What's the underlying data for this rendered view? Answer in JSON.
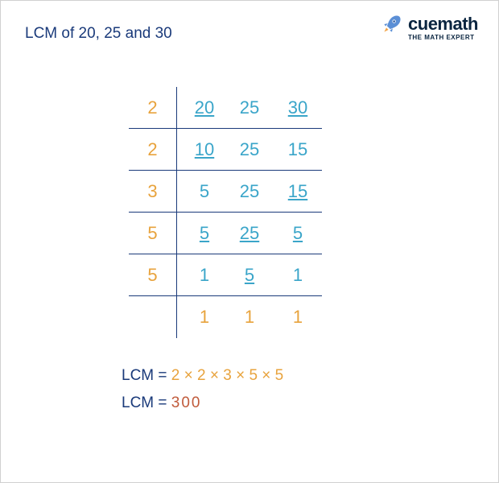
{
  "title": "LCM of 20, 25 and 30",
  "logo": {
    "brand": "cuemath",
    "tagline": "THE MATH EXPERT"
  },
  "colors": {
    "title": "#1a3a7a",
    "divisor": "#e8a33d",
    "number": "#3aa5c9",
    "border": "#1a3a7a",
    "label": "#1a3a7a",
    "factors": "#e8a33d",
    "answer": "#c05a3a",
    "background": "#ffffff"
  },
  "typography": {
    "title_fontsize": 19,
    "cell_fontsize": 22,
    "result_fontsize": 19
  },
  "ladder": {
    "rows": [
      {
        "divisor": "2",
        "cols": [
          {
            "v": "20",
            "u": true
          },
          {
            "v": "25",
            "u": false
          },
          {
            "v": "30",
            "u": true
          }
        ]
      },
      {
        "divisor": "2",
        "cols": [
          {
            "v": "10",
            "u": true
          },
          {
            "v": "25",
            "u": false
          },
          {
            "v": "15",
            "u": false
          }
        ]
      },
      {
        "divisor": "3",
        "cols": [
          {
            "v": "5",
            "u": false
          },
          {
            "v": "25",
            "u": false
          },
          {
            "v": "15",
            "u": true
          }
        ]
      },
      {
        "divisor": "5",
        "cols": [
          {
            "v": "5",
            "u": true
          },
          {
            "v": "25",
            "u": true
          },
          {
            "v": "5",
            "u": true
          }
        ]
      },
      {
        "divisor": "5",
        "cols": [
          {
            "v": "1",
            "u": false
          },
          {
            "v": "5",
            "u": true
          },
          {
            "v": "1",
            "u": false
          }
        ]
      },
      {
        "divisor": "",
        "cols": [
          {
            "v": "1",
            "u": false
          },
          {
            "v": "1",
            "u": false
          },
          {
            "v": "1",
            "u": false
          }
        ]
      }
    ]
  },
  "result": {
    "label": "LCM",
    "eq": "=",
    "factors": "2 × 2 × 3 × 5 × 5",
    "answer": "300"
  }
}
